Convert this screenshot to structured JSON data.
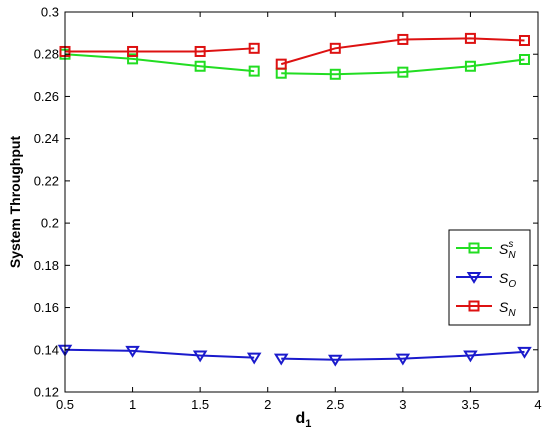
{
  "chart_data": {
    "type": "line",
    "xlabel": "d",
    "xlabel_sub": "1",
    "ylabel": "System Throughput",
    "xlim": [
      0.5,
      4
    ],
    "ylim": [
      0.12,
      0.3
    ],
    "xticks": [
      0.5,
      1,
      1.5,
      2,
      2.5,
      3,
      3.5,
      4
    ],
    "xtick_labels": [
      "0.5",
      "1",
      "1.5",
      "2",
      "2.5",
      "3",
      "3.5",
      "4"
    ],
    "yticks": [
      0.12,
      0.14,
      0.16,
      0.18,
      0.2,
      0.22,
      0.24,
      0.26,
      0.28,
      0.3
    ],
    "ytick_labels": [
      "0.12",
      "0.14",
      "0.16",
      "0.18",
      "0.2",
      "0.22",
      "0.24",
      "0.26",
      "0.28",
      "0.3"
    ],
    "grid": false,
    "legend_position": "right",
    "series": [
      {
        "key": "sns",
        "label_main": "S",
        "label_sub": "N",
        "label_sup": "s",
        "color": "#22dd22",
        "marker": "square",
        "segments": [
          {
            "x": [
              0.5,
              1,
              1.5,
              1.9
            ],
            "y": [
              0.28,
              0.2778,
              0.2743,
              0.272
            ]
          },
          {
            "x": [
              2.1,
              2.5,
              3,
              3.5,
              3.9
            ],
            "y": [
              0.271,
              0.2705,
              0.2715,
              0.2743,
              0.2775
            ]
          }
        ]
      },
      {
        "key": "so",
        "label_main": "S",
        "label_sub": "O",
        "label_sup": "",
        "color": "#1a1acc",
        "marker": "triangle-down",
        "segments": [
          {
            "x": [
              0.5,
              1,
              1.5,
              1.9
            ],
            "y": [
              0.14,
              0.1395,
              0.1373,
              0.1363
            ]
          },
          {
            "x": [
              2.1,
              2.5,
              3,
              3.5,
              3.9
            ],
            "y": [
              0.1358,
              0.1353,
              0.1358,
              0.1373,
              0.139
            ]
          }
        ]
      },
      {
        "key": "sn",
        "label_main": "S",
        "label_sub": "N",
        "label_sup": "",
        "color": "#dd1111",
        "marker": "square",
        "segments": [
          {
            "x": [
              0.5,
              1,
              1.5,
              1.9
            ],
            "y": [
              0.2813,
              0.2813,
              0.2813,
              0.2828
            ]
          },
          {
            "x": [
              2.1,
              2.5,
              3,
              3.5,
              3.9
            ],
            "y": [
              0.2753,
              0.2828,
              0.287,
              0.2875,
              0.2865
            ]
          }
        ]
      }
    ]
  }
}
